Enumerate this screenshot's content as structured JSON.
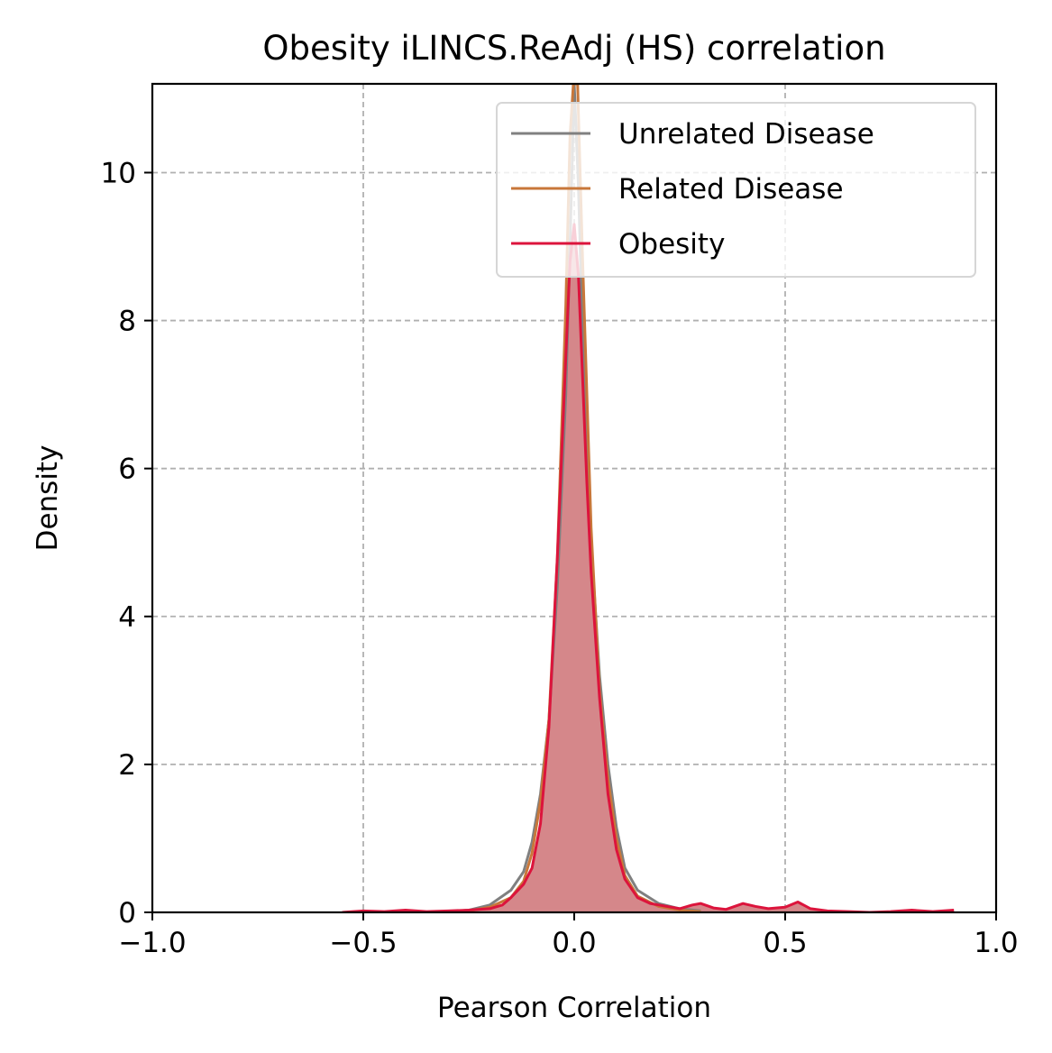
{
  "chart_data": {
    "type": "area",
    "title": "Obesity iLINCS.ReAdj (HS) correlation",
    "xlabel": "Pearson Correlation",
    "ylabel": "Density",
    "xlim": [
      -1.0,
      1.0
    ],
    "ylim": [
      0,
      11.2
    ],
    "xticks": [
      -1.0,
      -0.5,
      0.0,
      0.5,
      1.0
    ],
    "xtick_labels": [
      "−1.0",
      "−0.5",
      "0.0",
      "0.5",
      "1.0"
    ],
    "yticks": [
      0,
      2,
      4,
      6,
      8,
      10
    ],
    "ytick_labels": [
      "0",
      "2",
      "4",
      "6",
      "8",
      "10"
    ],
    "grid": true,
    "legend_position": "upper right",
    "series": [
      {
        "name": "Unrelated Disease",
        "color": "#808080",
        "fill": false,
        "x": [
          -0.3,
          -0.25,
          -0.2,
          -0.15,
          -0.12,
          -0.1,
          -0.08,
          -0.06,
          -0.04,
          -0.02,
          -0.01,
          0.0,
          0.01,
          0.02,
          0.04,
          0.06,
          0.08,
          0.1,
          0.12,
          0.15,
          0.2,
          0.25,
          0.3
        ],
        "y": [
          0.01,
          0.03,
          0.1,
          0.3,
          0.55,
          0.95,
          1.6,
          2.6,
          4.4,
          7.0,
          9.0,
          11.2,
          9.8,
          7.8,
          5.0,
          3.2,
          2.0,
          1.15,
          0.6,
          0.3,
          0.12,
          0.05,
          0.02
        ]
      },
      {
        "name": "Related Disease",
        "color": "#c8773a",
        "fill": false,
        "x": [
          -0.3,
          -0.25,
          -0.2,
          -0.15,
          -0.12,
          -0.1,
          -0.08,
          -0.06,
          -0.04,
          -0.02,
          -0.01,
          -0.002,
          0.0,
          0.008,
          0.02,
          0.04,
          0.06,
          0.08,
          0.1,
          0.12,
          0.15,
          0.2,
          0.25,
          0.3
        ],
        "y": [
          0.01,
          0.02,
          0.07,
          0.2,
          0.42,
          0.8,
          1.5,
          2.6,
          4.8,
          8.2,
          10.5,
          11.2,
          11.2,
          11.2,
          8.8,
          5.2,
          3.0,
          1.8,
          1.0,
          0.5,
          0.22,
          0.08,
          0.03,
          0.01
        ]
      },
      {
        "name": "Obesity",
        "color": "#dc143c",
        "fill": true,
        "fill_color": "#d5878a",
        "x": [
          -0.55,
          -0.5,
          -0.45,
          -0.4,
          -0.35,
          -0.3,
          -0.25,
          -0.2,
          -0.17,
          -0.15,
          -0.12,
          -0.1,
          -0.08,
          -0.06,
          -0.04,
          -0.02,
          -0.01,
          0.0,
          0.01,
          0.02,
          0.03,
          0.04,
          0.06,
          0.08,
          0.1,
          0.12,
          0.15,
          0.18,
          0.2,
          0.25,
          0.28,
          0.3,
          0.33,
          0.36,
          0.4,
          0.43,
          0.46,
          0.5,
          0.53,
          0.56,
          0.6,
          0.65,
          0.7,
          0.75,
          0.8,
          0.85,
          0.9
        ],
        "y": [
          0.0,
          0.02,
          0.01,
          0.03,
          0.01,
          0.02,
          0.03,
          0.05,
          0.1,
          0.2,
          0.38,
          0.6,
          1.2,
          2.5,
          4.8,
          7.5,
          8.8,
          9.3,
          8.6,
          7.2,
          5.8,
          4.6,
          2.9,
          1.6,
          0.85,
          0.45,
          0.2,
          0.12,
          0.1,
          0.05,
          0.1,
          0.12,
          0.06,
          0.04,
          0.12,
          0.08,
          0.05,
          0.07,
          0.14,
          0.05,
          0.02,
          0.01,
          0.0,
          0.01,
          0.03,
          0.01,
          0.03
        ]
      }
    ]
  }
}
